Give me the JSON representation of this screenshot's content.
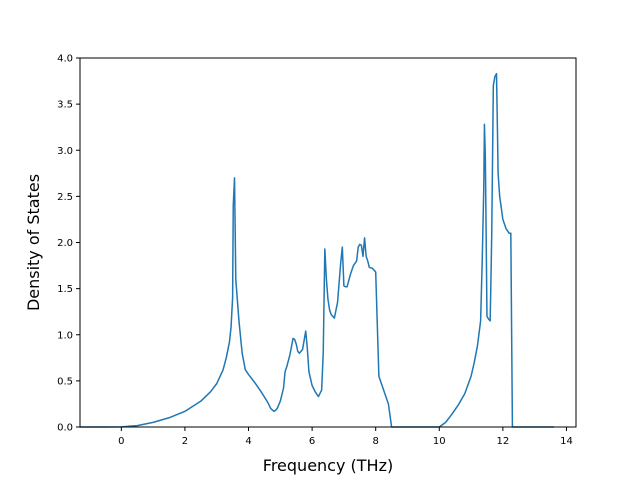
{
  "chart_data": {
    "type": "line",
    "title": "",
    "xlabel": "Frequency (THz)",
    "ylabel": "Density of States",
    "xlim": [
      -1.3,
      14.3
    ],
    "ylim": [
      0,
      4.0
    ],
    "xticks": [
      0,
      2,
      4,
      6,
      8,
      10,
      12,
      14
    ],
    "xtick_labels": [
      "0",
      "2",
      "4",
      "6",
      "8",
      "10",
      "12",
      "14"
    ],
    "yticks": [
      0,
      0.5,
      1.0,
      1.5,
      2.0,
      2.5,
      3.0,
      3.5,
      4.0
    ],
    "ytick_labels": [
      "0.0",
      "0.5",
      "1.0",
      "1.5",
      "2.0",
      "2.5",
      "3.0",
      "3.5",
      "4.0"
    ],
    "grid": false,
    "series": [
      {
        "color": "#1f77b4",
        "x": [
          -1.3,
          -0.5,
          0.0,
          0.5,
          1.0,
          1.5,
          2.0,
          2.5,
          2.8,
          3.0,
          3.2,
          3.3,
          3.4,
          3.45,
          3.5,
          3.52,
          3.56,
          3.6,
          3.7,
          3.8,
          3.9,
          4.0,
          4.2,
          4.4,
          4.6,
          4.7,
          4.8,
          4.85,
          4.9,
          5.0,
          5.1,
          5.15,
          5.2,
          5.3,
          5.4,
          5.45,
          5.5,
          5.55,
          5.6,
          5.7,
          5.8,
          5.85,
          5.9,
          6.0,
          6.1,
          6.2,
          6.3,
          6.35,
          6.4,
          6.45,
          6.5,
          6.55,
          6.6,
          6.7,
          6.8,
          6.9,
          6.95,
          7.0,
          7.05,
          7.1,
          7.2,
          7.3,
          7.4,
          7.45,
          7.5,
          7.55,
          7.6,
          7.65,
          7.7,
          7.75,
          7.8,
          7.9,
          8.0,
          8.1,
          8.2,
          8.3,
          8.4,
          8.5,
          8.55,
          8.6,
          9.0,
          9.5,
          10.0,
          10.2,
          10.4,
          10.6,
          10.8,
          11.0,
          11.1,
          11.2,
          11.3,
          11.35,
          11.4,
          11.42,
          11.45,
          11.5,
          11.55,
          11.6,
          11.62,
          11.65,
          11.7,
          11.75,
          11.8,
          11.83,
          11.85,
          11.9,
          12.0,
          12.1,
          12.2,
          12.25,
          12.3,
          12.4,
          12.5,
          13.0,
          13.6
        ],
        "y": [
          0.0,
          0.0,
          0.002,
          0.015,
          0.05,
          0.1,
          0.17,
          0.28,
          0.38,
          0.47,
          0.62,
          0.75,
          0.92,
          1.08,
          1.4,
          2.4,
          2.7,
          1.6,
          1.15,
          0.8,
          0.62,
          0.57,
          0.48,
          0.38,
          0.27,
          0.2,
          0.17,
          0.18,
          0.2,
          0.28,
          0.42,
          0.6,
          0.65,
          0.78,
          0.96,
          0.95,
          0.9,
          0.82,
          0.8,
          0.84,
          1.04,
          0.85,
          0.6,
          0.45,
          0.38,
          0.33,
          0.4,
          0.8,
          1.93,
          1.6,
          1.38,
          1.27,
          1.22,
          1.18,
          1.35,
          1.78,
          1.95,
          1.53,
          1.52,
          1.52,
          1.65,
          1.75,
          1.8,
          1.95,
          1.98,
          1.97,
          1.85,
          2.05,
          1.85,
          1.8,
          1.73,
          1.72,
          1.68,
          0.55,
          0.45,
          0.35,
          0.25,
          0.0,
          0.0,
          0.0,
          0.0,
          0.0,
          0.0,
          0.05,
          0.14,
          0.24,
          0.36,
          0.55,
          0.7,
          0.88,
          1.15,
          1.8,
          2.6,
          3.28,
          2.9,
          1.2,
          1.17,
          1.15,
          1.5,
          2.1,
          3.7,
          3.8,
          3.83,
          3.2,
          2.75,
          2.5,
          2.25,
          2.15,
          2.1,
          2.1,
          0.0,
          0.0,
          0.0,
          0.0,
          0.0
        ]
      }
    ]
  }
}
